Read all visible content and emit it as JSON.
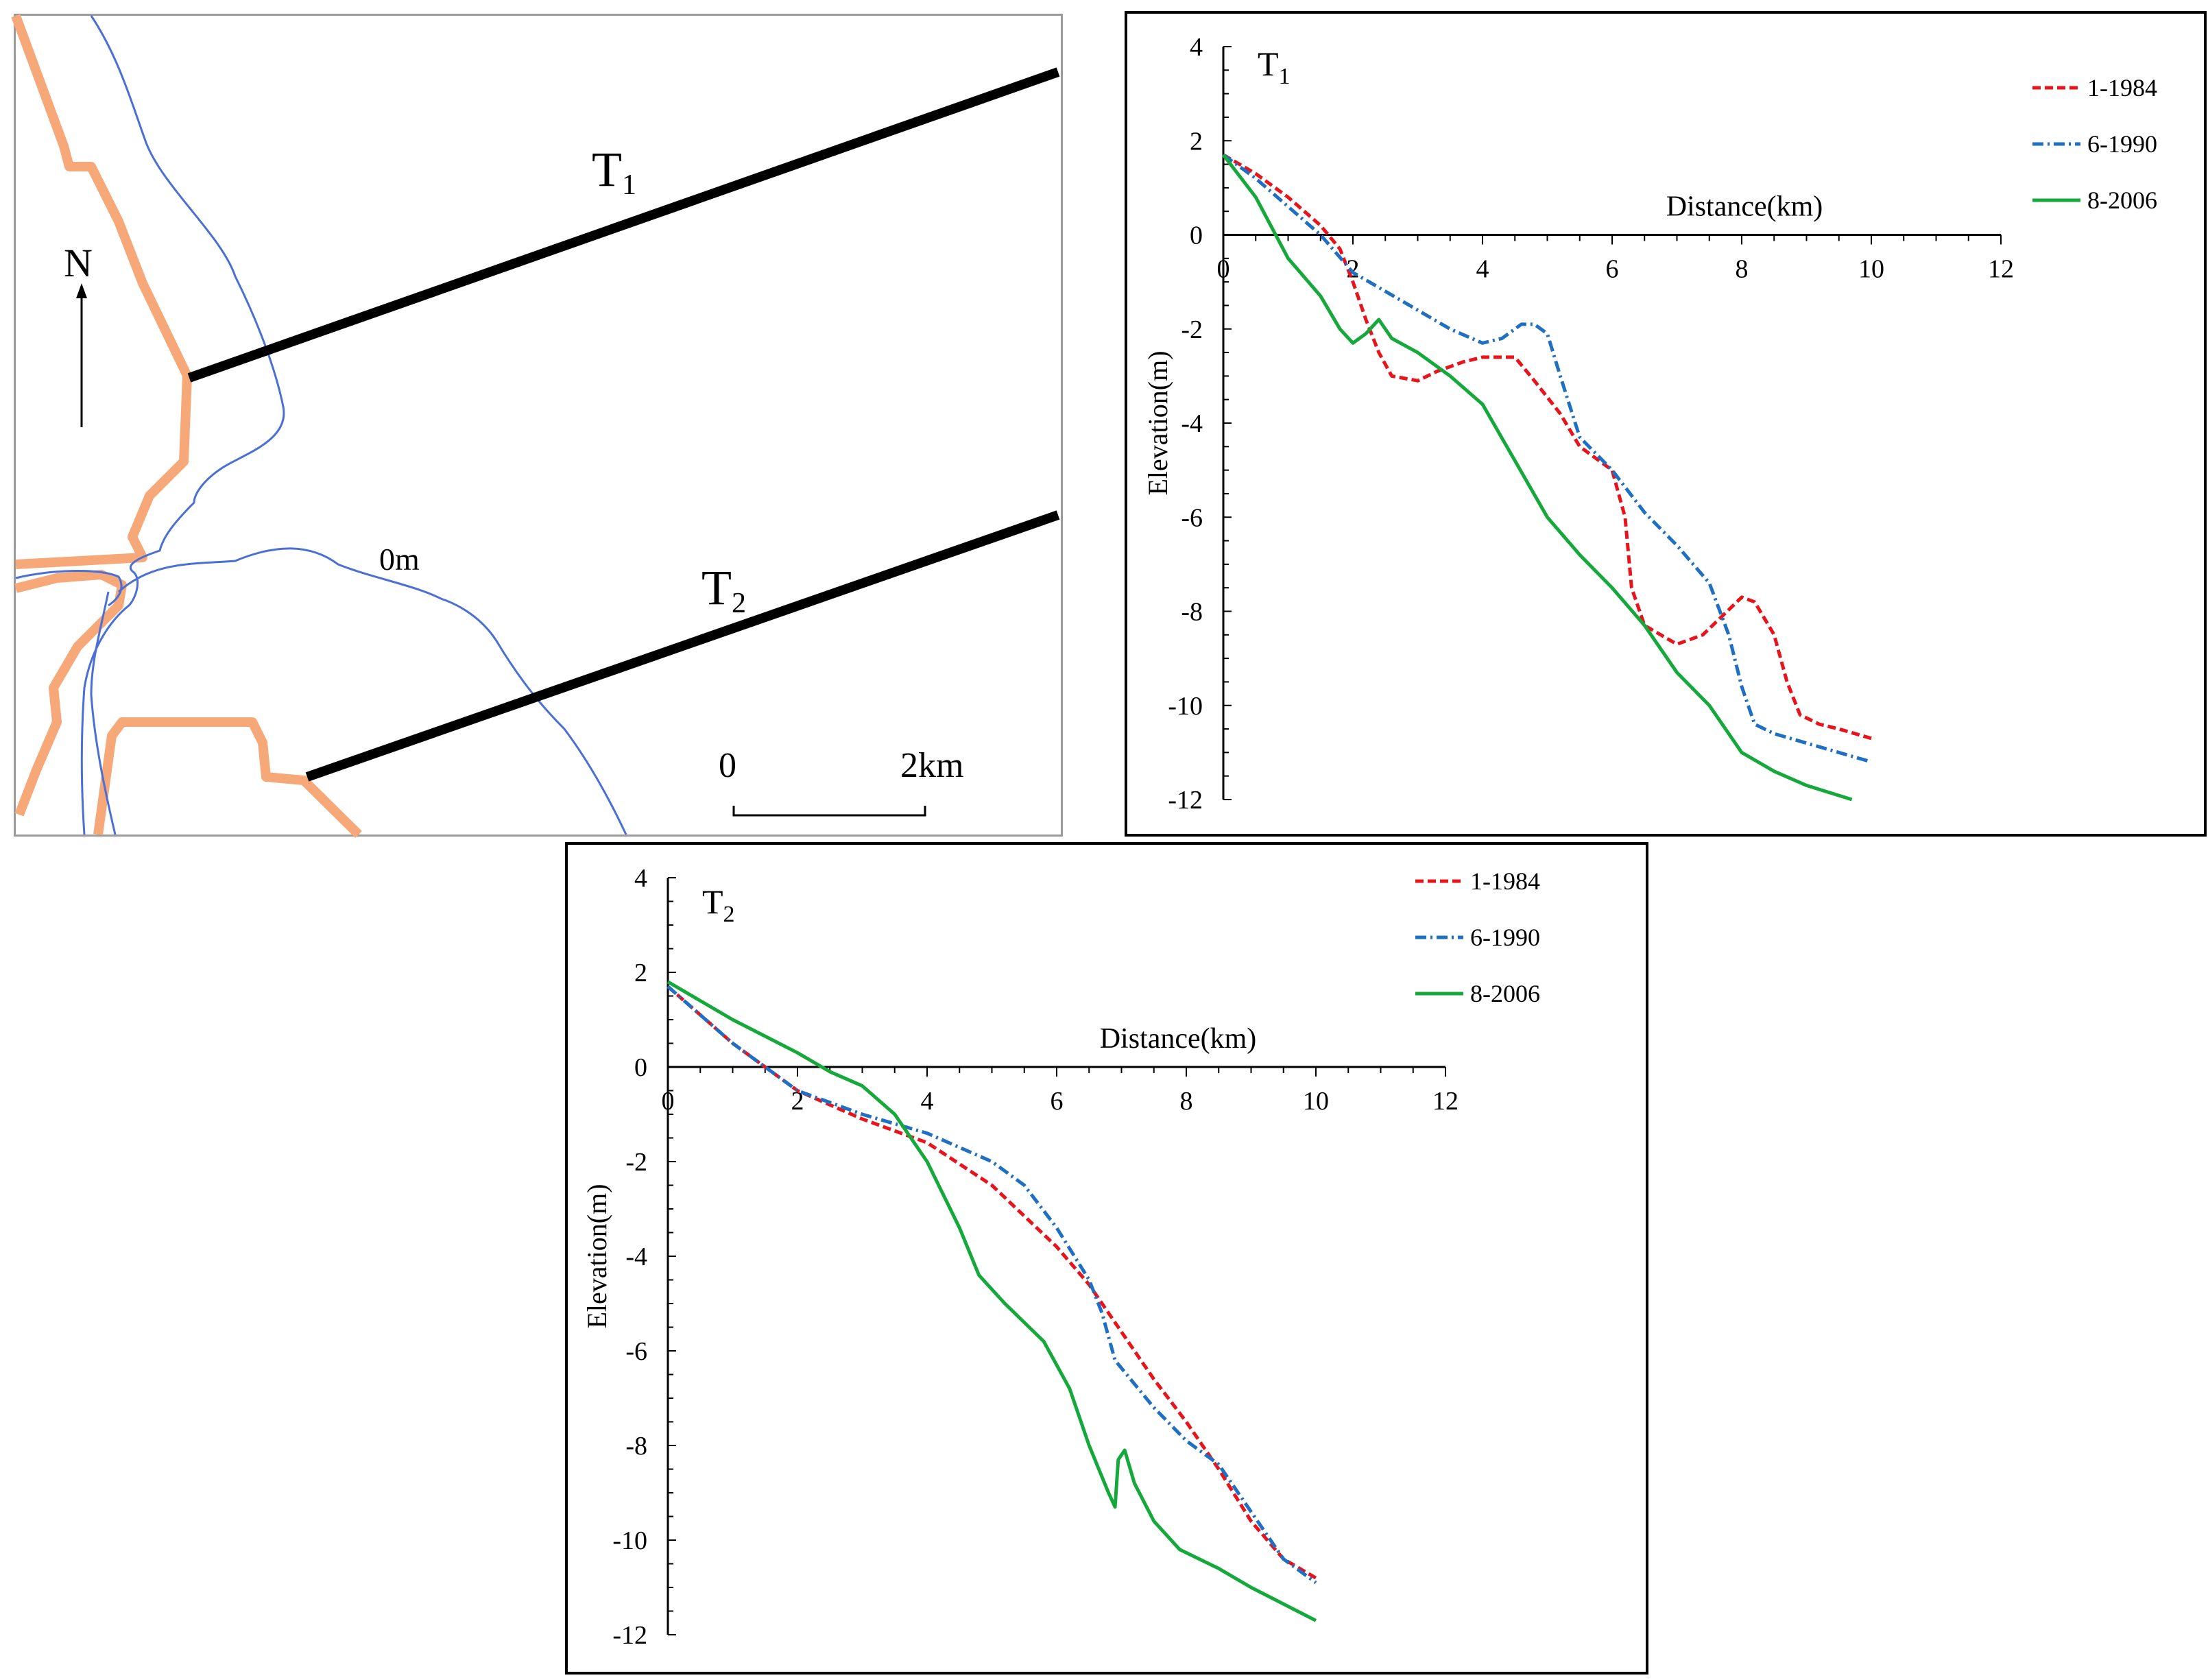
{
  "map": {
    "north_label": "N",
    "contour_label": "0m",
    "transect1": {
      "main": "T",
      "sub": "1"
    },
    "transect2": {
      "main": "T",
      "sub": "2"
    },
    "scale_start": "0",
    "scale_end": "2km",
    "colors": {
      "shoreline": "#f6a878",
      "contour": "#4a6fd6",
      "transect": "#000000"
    }
  },
  "chart_data": [
    {
      "type": "line",
      "title_main": "T",
      "title_sub": "1",
      "xlabel": "Distance(km)",
      "ylabel": "Elevation(m)",
      "xlim": [
        0,
        12
      ],
      "ylim": [
        -12,
        4
      ],
      "xticks": [
        0,
        2,
        4,
        6,
        8,
        10,
        12
      ],
      "yticks": [
        4,
        2,
        0,
        -2,
        -4,
        -6,
        -8,
        -10,
        -12
      ],
      "series": [
        {
          "name": "1-1984",
          "color": "#e8141b",
          "dash": "12 6",
          "points": [
            [
              0,
              1.7
            ],
            [
              0.5,
              1.3
            ],
            [
              1,
              0.8
            ],
            [
              1.5,
              0.2
            ],
            [
              1.8,
              -0.3
            ],
            [
              2,
              -1
            ],
            [
              2.2,
              -1.8
            ],
            [
              2.4,
              -2.5
            ],
            [
              2.6,
              -3
            ],
            [
              3,
              -3.1
            ],
            [
              3.3,
              -2.9
            ],
            [
              3.7,
              -2.7
            ],
            [
              4,
              -2.6
            ],
            [
              4.5,
              -2.6
            ],
            [
              4.8,
              -3.1
            ],
            [
              5.2,
              -3.8
            ],
            [
              5.5,
              -4.5
            ],
            [
              6,
              -5
            ],
            [
              6.2,
              -6
            ],
            [
              6.3,
              -7.5
            ],
            [
              6.5,
              -8.3
            ],
            [
              7,
              -8.7
            ],
            [
              7.4,
              -8.5
            ],
            [
              7.7,
              -8.1
            ],
            [
              8,
              -7.7
            ],
            [
              8.2,
              -7.8
            ],
            [
              8.5,
              -8.5
            ],
            [
              8.7,
              -9.5
            ],
            [
              8.9,
              -10.2
            ],
            [
              9.2,
              -10.4
            ],
            [
              9.5,
              -10.5
            ],
            [
              10,
              -10.7
            ]
          ]
        },
        {
          "name": "6-1990",
          "color": "#1f6fc2",
          "dash": "16 6 3 6",
          "points": [
            [
              0,
              1.7
            ],
            [
              0.5,
              1.2
            ],
            [
              1,
              0.6
            ],
            [
              1.5,
              0
            ],
            [
              2,
              -0.8
            ],
            [
              2.5,
              -1.2
            ],
            [
              3,
              -1.6
            ],
            [
              3.5,
              -2
            ],
            [
              4,
              -2.3
            ],
            [
              4.3,
              -2.2
            ],
            [
              4.6,
              -1.9
            ],
            [
              4.8,
              -1.9
            ],
            [
              5,
              -2.1
            ],
            [
              5.2,
              -3
            ],
            [
              5.5,
              -4.3
            ],
            [
              6,
              -5
            ],
            [
              6.5,
              -5.9
            ],
            [
              7,
              -6.6
            ],
            [
              7.5,
              -7.4
            ],
            [
              7.8,
              -8.5
            ],
            [
              8,
              -9.6
            ],
            [
              8.2,
              -10.4
            ],
            [
              8.5,
              -10.6
            ],
            [
              9,
              -10.8
            ],
            [
              10,
              -11.2
            ]
          ]
        },
        {
          "name": "8-2006",
          "color": "#15a83a",
          "dash": "none",
          "points": [
            [
              0,
              1.7
            ],
            [
              0.5,
              0.8
            ],
            [
              1,
              -0.5
            ],
            [
              1.5,
              -1.3
            ],
            [
              1.8,
              -2
            ],
            [
              2,
              -2.3
            ],
            [
              2.2,
              -2.1
            ],
            [
              2.4,
              -1.8
            ],
            [
              2.6,
              -2.2
            ],
            [
              3,
              -2.5
            ],
            [
              3.5,
              -3
            ],
            [
              4,
              -3.6
            ],
            [
              4.5,
              -4.8
            ],
            [
              5,
              -6
            ],
            [
              5.5,
              -6.8
            ],
            [
              6,
              -7.5
            ],
            [
              6.5,
              -8.3
            ],
            [
              7,
              -9.3
            ],
            [
              7.5,
              -10
            ],
            [
              8,
              -11
            ],
            [
              8.5,
              -11.4
            ],
            [
              9,
              -11.7
            ],
            [
              9.7,
              -12
            ]
          ]
        }
      ]
    },
    {
      "type": "line",
      "title_main": "T",
      "title_sub": "2",
      "xlabel": "Distance(km)",
      "ylabel": "Elevation(m)",
      "xlim": [
        0,
        12
      ],
      "ylim": [
        -12,
        4
      ],
      "xticks": [
        0,
        2,
        4,
        6,
        8,
        10,
        12
      ],
      "yticks": [
        4,
        2,
        0,
        -2,
        -4,
        -6,
        -8,
        -10,
        -12
      ],
      "series": [
        {
          "name": "1-1984",
          "color": "#e8141b",
          "dash": "12 6",
          "points": [
            [
              0,
              1.7
            ],
            [
              0.5,
              1.1
            ],
            [
              1,
              0.5
            ],
            [
              1.5,
              0
            ],
            [
              2,
              -0.5
            ],
            [
              3,
              -1.1
            ],
            [
              4,
              -1.6
            ],
            [
              5,
              -2.5
            ],
            [
              6,
              -3.8
            ],
            [
              6.5,
              -4.6
            ],
            [
              7,
              -5.6
            ],
            [
              7.5,
              -6.6
            ],
            [
              8,
              -7.5
            ],
            [
              8.5,
              -8.5
            ],
            [
              9,
              -9.6
            ],
            [
              9.5,
              -10.4
            ],
            [
              10,
              -10.8
            ]
          ]
        },
        {
          "name": "6-1990",
          "color": "#1f6fc2",
          "dash": "16 6 3 6",
          "points": [
            [
              0,
              1.7
            ],
            [
              0.5,
              1.1
            ],
            [
              1,
              0.5
            ],
            [
              1.5,
              0
            ],
            [
              2,
              -0.5
            ],
            [
              3,
              -1
            ],
            [
              4,
              -1.4
            ],
            [
              5,
              -2
            ],
            [
              5.5,
              -2.5
            ],
            [
              6,
              -3.4
            ],
            [
              6.5,
              -4.5
            ],
            [
              6.7,
              -5.2
            ],
            [
              6.9,
              -6.2
            ],
            [
              7.5,
              -7.2
            ],
            [
              8,
              -7.9
            ],
            [
              8.5,
              -8.4
            ],
            [
              9,
              -9.4
            ],
            [
              9.5,
              -10.4
            ],
            [
              10,
              -10.9
            ]
          ]
        },
        {
          "name": "8-2006",
          "color": "#15a83a",
          "dash": "none",
          "points": [
            [
              0,
              1.8
            ],
            [
              1,
              1
            ],
            [
              2,
              0.3
            ],
            [
              2.5,
              -0.1
            ],
            [
              3,
              -0.4
            ],
            [
              3.5,
              -1
            ],
            [
              4,
              -2
            ],
            [
              4.5,
              -3.4
            ],
            [
              4.8,
              -4.4
            ],
            [
              5.2,
              -5
            ],
            [
              5.8,
              -5.8
            ],
            [
              6.2,
              -6.8
            ],
            [
              6.5,
              -8
            ],
            [
              6.8,
              -9
            ],
            [
              6.9,
              -9.3
            ],
            [
              6.95,
              -8.3
            ],
            [
              7.05,
              -8.1
            ],
            [
              7.2,
              -8.8
            ],
            [
              7.5,
              -9.6
            ],
            [
              7.9,
              -10.2
            ],
            [
              8.5,
              -10.6
            ],
            [
              9,
              -11
            ],
            [
              10,
              -11.7
            ]
          ]
        }
      ]
    }
  ]
}
